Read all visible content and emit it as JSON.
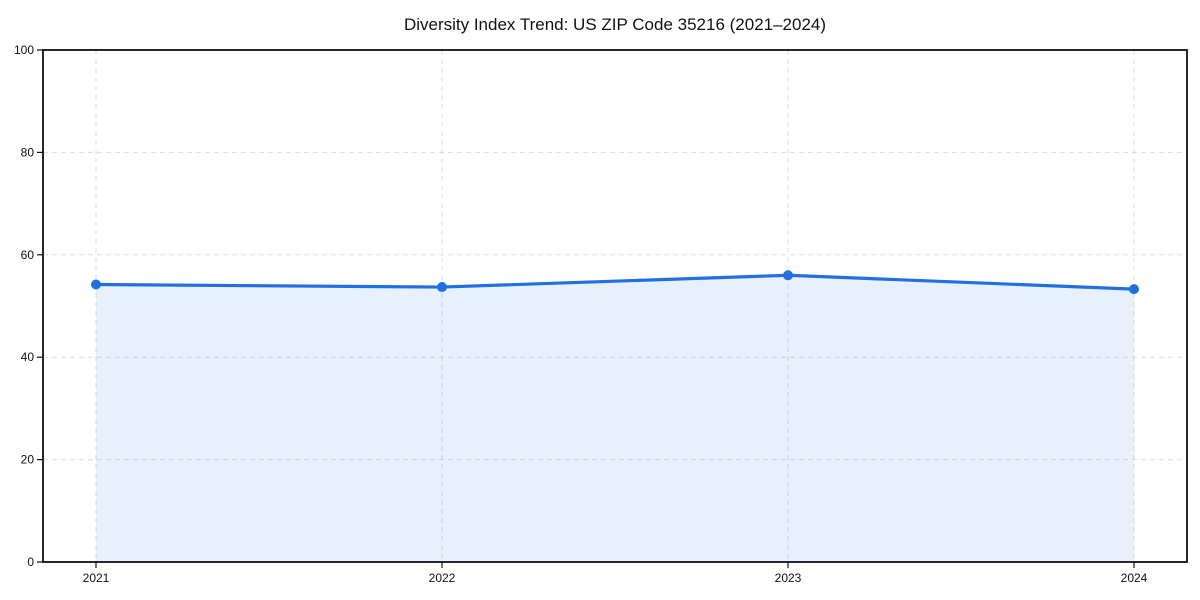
{
  "chart_data": {
    "type": "area",
    "title": "Diversity Index Trend: US ZIP Code 35216 (2021–2024)",
    "x": [
      2021,
      2022,
      2023,
      2024
    ],
    "series": [
      {
        "name": "Diversity Index",
        "values": [
          54.2,
          53.7,
          56.0,
          53.3
        ]
      }
    ],
    "xlabel": "",
    "ylabel": "",
    "ylim": [
      0,
      100
    ],
    "yticks": [
      0,
      20,
      40,
      60,
      80,
      100
    ],
    "xticks": [
      "2021",
      "2022",
      "2023",
      "2024"
    ],
    "grid": true,
    "grid_style": "dashed",
    "legend": "none",
    "colors": {
      "line": "#2270e0",
      "marker": "#2270e0",
      "fill": "#2270e0",
      "fill_opacity": 0.1,
      "grid": "#dcdcdc",
      "axis": "#111111",
      "text": "#111111",
      "background": "#ffffff"
    }
  }
}
